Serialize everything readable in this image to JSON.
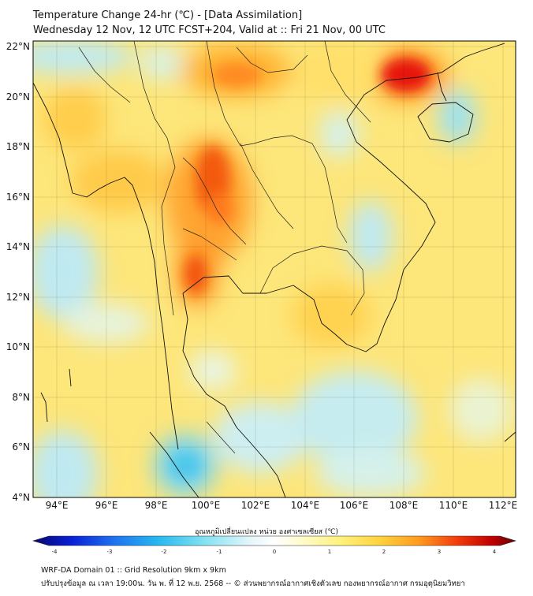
{
  "header": {
    "title_line1": "Temperature Change 24-hr (℃) - [Data Assimilation]",
    "title_line2": "Wednesday 12 Nov, 12 UTC FCST+204, Valid at :: Fri 21 Nov, 00 UTC"
  },
  "map": {
    "lon_range": [
      93,
      112.5
    ],
    "lat_range": [
      4,
      22.2
    ],
    "lat_ticks": [
      "22°N",
      "20°N",
      "18°N",
      "16°N",
      "14°N",
      "12°N",
      "10°N",
      "8°N",
      "6°N",
      "4°N"
    ],
    "lon_ticks": [
      "94°E",
      "96°E",
      "98°E",
      "100°E",
      "102°E",
      "104°E",
      "106°E",
      "108°E",
      "110°E",
      "112°E"
    ]
  },
  "colorbar": {
    "title": "อุณหภูมิเปลี่ยนแปลง หน่วย องศาเซลเซียส (℃)",
    "ticks": [
      "-4",
      "-3",
      "-2",
      "-1",
      "0",
      "1",
      "2",
      "3",
      "4"
    ],
    "range": [
      -4,
      4
    ]
  },
  "footer": {
    "line1": "WRF-DA Domain 01 :: Grid Resolution 9km x 9km",
    "line2": "ปรับปรุงข้อมูล ณ เวลา 19:00น. วัน พ. ที่ 12 พ.ย. 2568 -- © ส่วนพยากรณ์อากาศเชิงตัวเลข กองพยากรณ์อากาศ กรมอุตุนิยมวิทยา"
  }
}
